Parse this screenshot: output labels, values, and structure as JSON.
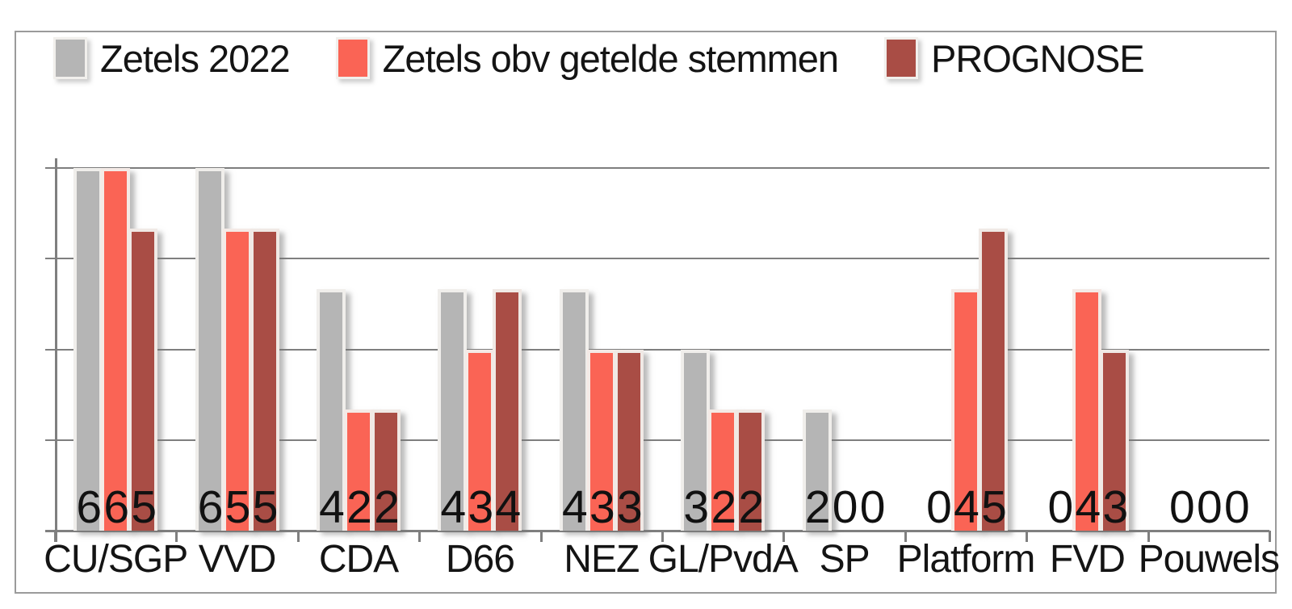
{
  "chart_data": {
    "type": "bar",
    "title": "",
    "xlabel": "",
    "ylabel": "",
    "categories": [
      "CU/SGP",
      "VVD",
      "CDA",
      "D66",
      "NEZ",
      "GL/PvdA",
      "SP",
      "Platform",
      "FVD",
      "Pouwels"
    ],
    "series": [
      {
        "name": "Zetels 2022",
        "color": "#b5b5b5",
        "values": [
          6,
          6,
          4,
          4,
          4,
          3,
          2,
          0,
          0,
          0
        ]
      },
      {
        "name": "Zetels obv getelde stemmen",
        "color": "#fa6455",
        "values": [
          6,
          5,
          2,
          3,
          3,
          2,
          0,
          4,
          4,
          0
        ]
      },
      {
        "name": "PROGNOSE",
        "color": "#a94d45",
        "values": [
          5,
          5,
          2,
          4,
          3,
          2,
          0,
          5,
          3,
          0
        ]
      }
    ],
    "ylim": [
      0,
      6
    ],
    "gridline_values": [
      1.5,
      3,
      4.5,
      6
    ],
    "grid": true,
    "y_tick_labels_visible": false,
    "data_labels": true,
    "legend_position": "top-left"
  },
  "colors": {
    "background": "#ffffff",
    "frame_border": "#9b9b9b",
    "gridline": "#7f7f7f",
    "axis": "#7f7f7f",
    "text": "#141414"
  }
}
